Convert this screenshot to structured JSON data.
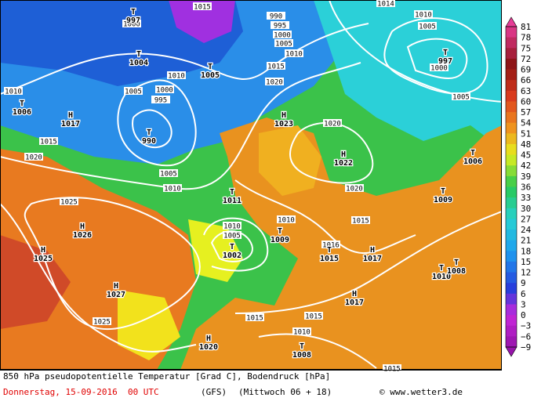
{
  "colorbar": {
    "labels": [
      "81",
      "78",
      "75",
      "72",
      "69",
      "66",
      "63",
      "60",
      "57",
      "54",
      "51",
      "48",
      "45",
      "42",
      "39",
      "36",
      "33",
      "30",
      "27",
      "24",
      "21",
      "18",
      "15",
      "12",
      "9",
      "6",
      "3",
      "0",
      "−3",
      "−6",
      "−9"
    ]
  },
  "centers": [
    {
      "kind": "T",
      "value": "997"
    },
    {
      "kind": "T",
      "value": "1004"
    },
    {
      "kind": "T",
      "value": "1005"
    },
    {
      "kind": "T",
      "value": "990"
    },
    {
      "kind": "T",
      "value": "1006"
    },
    {
      "kind": "H",
      "value": "1017"
    },
    {
      "kind": "H",
      "value": "1023"
    },
    {
      "kind": "H",
      "value": "1022"
    },
    {
      "kind": "T",
      "value": "997"
    },
    {
      "kind": "T",
      "value": "1006"
    },
    {
      "kind": "T",
      "value": "1009"
    },
    {
      "kind": "T",
      "value": "1011"
    },
    {
      "kind": "H",
      "value": "1026"
    },
    {
      "kind": "H",
      "value": "1025"
    },
    {
      "kind": "T",
      "value": "1009"
    },
    {
      "kind": "T",
      "value": "1002"
    },
    {
      "kind": "T",
      "value": "1015"
    },
    {
      "kind": "H",
      "value": "1017"
    },
    {
      "kind": "T",
      "value": "1010"
    },
    {
      "kind": "T",
      "value": "1008"
    },
    {
      "kind": "H",
      "value": "1027"
    },
    {
      "kind": "H",
      "value": "1017"
    },
    {
      "kind": "H",
      "value": "1020"
    },
    {
      "kind": "T",
      "value": "1008"
    }
  ],
  "isobar_labels": [
    "1015",
    "990",
    "995",
    "1000",
    "1005",
    "1010",
    "1015",
    "1020",
    "1010",
    "1005",
    "1000",
    "995",
    "1010",
    "1015",
    "1020",
    "1005",
    "1010",
    "1025",
    "1020",
    "1020",
    "1010",
    "1015",
    "1010",
    "1005",
    "1016",
    "1025",
    "1015",
    "1015",
    "1010",
    "1014",
    "1010",
    "1005",
    "1000",
    "1005",
    "1015",
    "1000"
  ],
  "footer": {
    "title": "850 hPa pseudopotentielle Temperatur [Grad C], Bodendruck [hPa]",
    "date": "Donnerstag, 15-09-2016  00 UTC",
    "model": "(GFS)",
    "run": "(Mittwoch 06 + 18)",
    "credit": "© www.wetter3.de"
  }
}
